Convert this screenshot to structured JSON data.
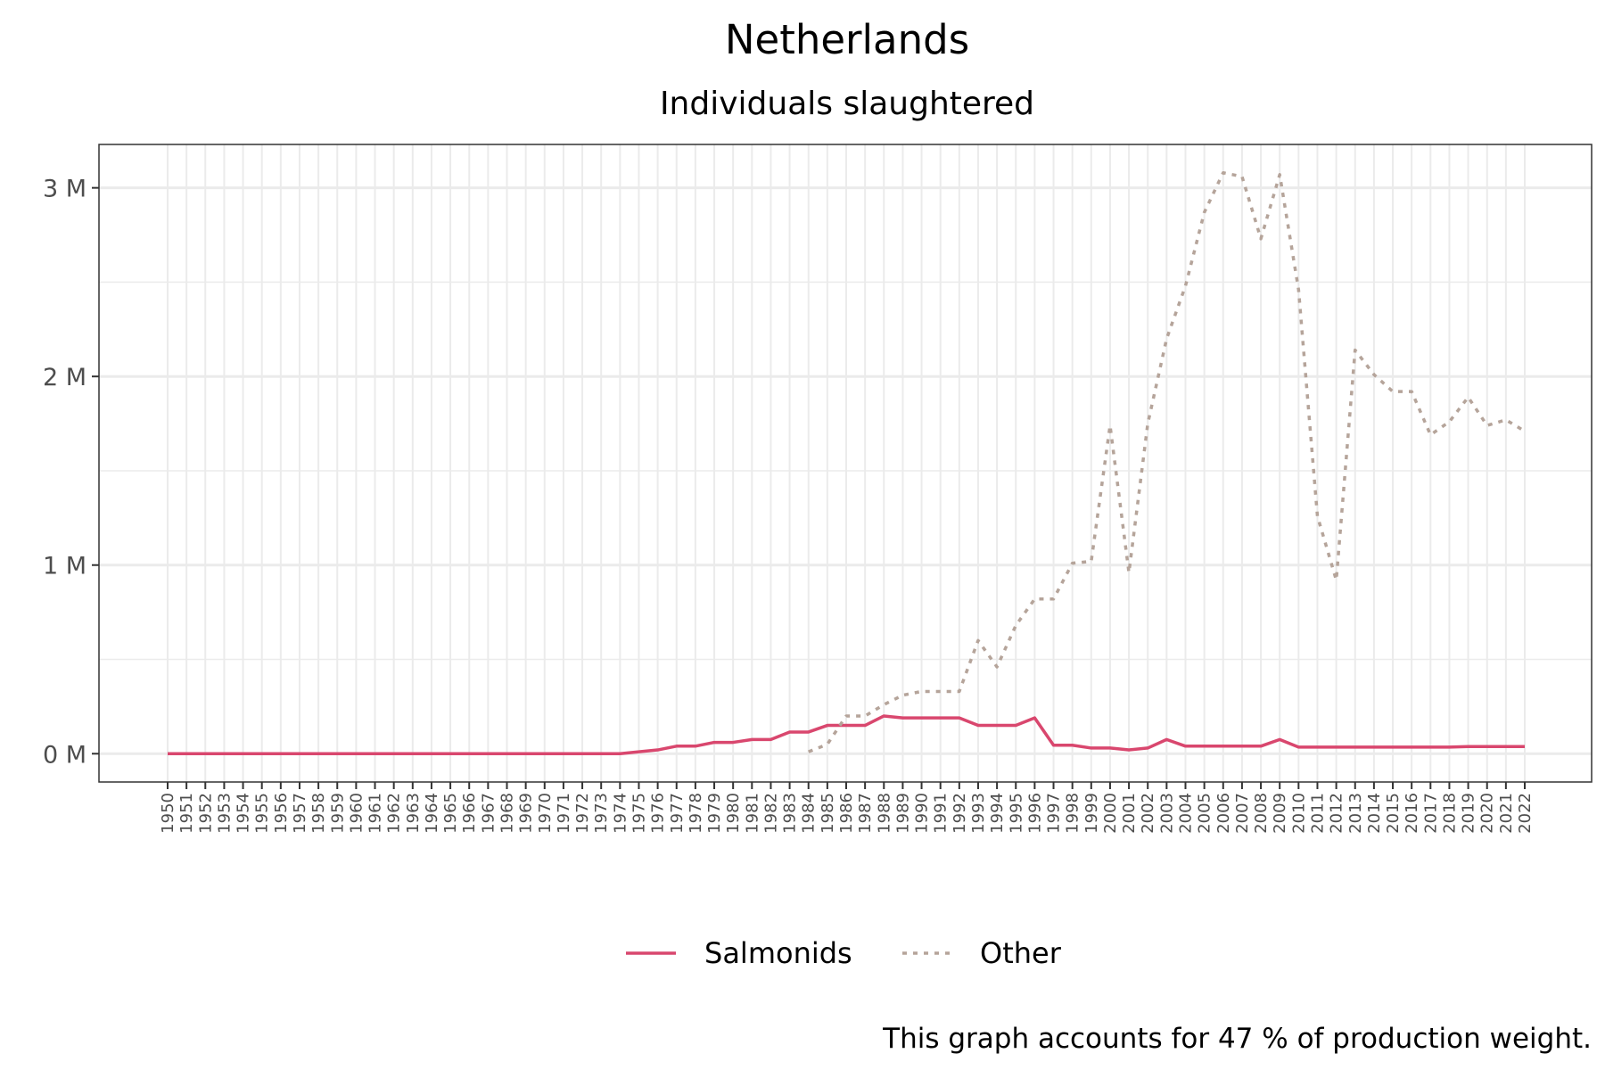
{
  "chart_data": {
    "type": "line",
    "title": "Netherlands",
    "subtitle": "Individuals slaughtered",
    "caption": "This graph accounts for 47 % of production weight.",
    "xlabel": "",
    "ylabel": "",
    "y_ticks": [
      0,
      1000000,
      2000000,
      3000000
    ],
    "y_tick_labels": [
      "0 M",
      "1 M",
      "2 M",
      "3 M"
    ],
    "ylim": [
      -150000,
      3230000
    ],
    "x_start": 1950,
    "x_end": 2022,
    "grid": true,
    "legend_position": "bottom",
    "series": [
      {
        "name": "Salmonids",
        "color": "#d9476e",
        "dash": "solid",
        "x": [
          1950,
          1951,
          1952,
          1953,
          1954,
          1955,
          1956,
          1957,
          1958,
          1959,
          1960,
          1961,
          1962,
          1963,
          1964,
          1965,
          1966,
          1967,
          1968,
          1969,
          1970,
          1971,
          1972,
          1973,
          1974,
          1975,
          1976,
          1977,
          1978,
          1979,
          1980,
          1981,
          1982,
          1983,
          1984,
          1985,
          1986,
          1987,
          1988,
          1989,
          1990,
          1991,
          1992,
          1993,
          1994,
          1995,
          1996,
          1997,
          1998,
          1999,
          2000,
          2001,
          2002,
          2003,
          2004,
          2005,
          2006,
          2007,
          2008,
          2009,
          2010,
          2011,
          2012,
          2013,
          2014,
          2015,
          2016,
          2017,
          2018,
          2019,
          2020,
          2021,
          2022
        ],
        "values": [
          0,
          0,
          0,
          0,
          0,
          0,
          0,
          0,
          0,
          0,
          0,
          0,
          0,
          0,
          0,
          0,
          0,
          0,
          0,
          0,
          0,
          0,
          0,
          0,
          0,
          10000,
          20000,
          40000,
          40000,
          60000,
          60000,
          75000,
          75000,
          115000,
          115000,
          150000,
          150000,
          150000,
          200000,
          190000,
          190000,
          190000,
          190000,
          150000,
          150000,
          150000,
          190000,
          45000,
          45000,
          30000,
          30000,
          20000,
          30000,
          75000,
          40000,
          40000,
          40000,
          40000,
          40000,
          75000,
          35000,
          35000,
          35000,
          35000,
          35000,
          35000,
          35000,
          35000,
          35000,
          38000,
          38000,
          38000,
          38000
        ]
      },
      {
        "name": "Other",
        "color": "#b5a49a",
        "dash": "dotted",
        "x": [
          1984,
          1985,
          1986,
          1987,
          1988,
          1989,
          1990,
          1991,
          1992,
          1993,
          1994,
          1995,
          1996,
          1997,
          1998,
          1999,
          2000,
          2001,
          2002,
          2003,
          2004,
          2005,
          2006,
          2007,
          2008,
          2009,
          2010,
          2011,
          2012,
          2013,
          2014,
          2015,
          2016,
          2017,
          2018,
          2019,
          2020,
          2021,
          2022
        ],
        "values": [
          10000,
          50000,
          200000,
          200000,
          260000,
          310000,
          330000,
          330000,
          330000,
          600000,
          460000,
          680000,
          820000,
          820000,
          1010000,
          1020000,
          1740000,
          960000,
          1750000,
          2200000,
          2480000,
          2870000,
          3080000,
          3060000,
          2730000,
          3070000,
          2460000,
          1260000,
          920000,
          2140000,
          2010000,
          1920000,
          1920000,
          1690000,
          1760000,
          1890000,
          1740000,
          1770000,
          1710000
        ]
      }
    ]
  }
}
